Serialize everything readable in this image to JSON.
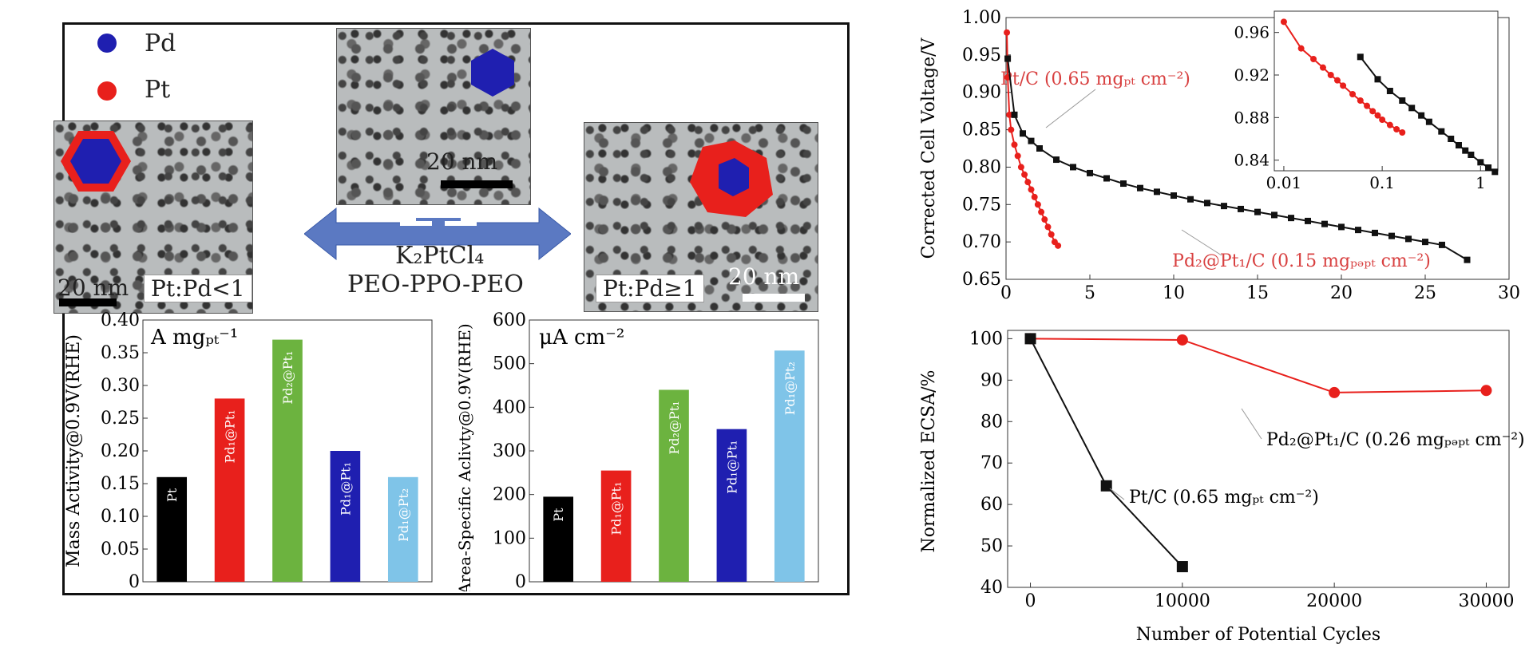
{
  "legend": {
    "pd_label": "Pd",
    "pt_label": "Pt",
    "pd_color": "#1f1fb0",
    "pt_color": "#e8201c"
  },
  "tem": {
    "scale": "20 nm",
    "ratio_low": "Pt:Pd<1",
    "ratio_high": "Pt:Pd≥1"
  },
  "synthesis": {
    "reagent": "K₂PtCl₄",
    "surfactant": "PEO-PPO-PEO"
  },
  "chart_data": [
    {
      "type": "bar",
      "unit_label": "A mgₚₜ⁻¹",
      "ylabel": "Mass Activity@0.9V(RHE)",
      "ylim": [
        0,
        0.4
      ],
      "yticks": [
        "0",
        "0.05",
        "0.10",
        "0.15",
        "0.20",
        "0.25",
        "0.30",
        "0.35",
        "0.40"
      ],
      "categories": [
        "Pt",
        "Pd₁@Pt₁",
        "Pd₂@Pt₁",
        "Pd₁@Pt₁",
        "Pd₁@Pt₂"
      ],
      "values": [
        0.16,
        0.28,
        0.37,
        0.2,
        0.16
      ],
      "colors": [
        "#000000",
        "#e8201c",
        "#6cb33f",
        "#1f1fb0",
        "#7fc4e8"
      ]
    },
    {
      "type": "bar",
      "unit_label": "μA cm⁻²",
      "ylabel": "Area-Specific Aclivty@0.9V(RHE)",
      "ylim": [
        0,
        600
      ],
      "yticks": [
        "0",
        "100",
        "200",
        "300",
        "400",
        "500",
        "600"
      ],
      "categories": [
        "Pt",
        "Pd₁@Pt₁",
        "Pd₂@Pt₁",
        "Pd₁@Pt₁",
        "Pd₁@Pt₂"
      ],
      "values": [
        195,
        255,
        440,
        350,
        530
      ],
      "colors": [
        "#000000",
        "#e8201c",
        "#6cb33f",
        "#1f1fb0",
        "#7fc4e8"
      ]
    },
    {
      "type": "line",
      "ylabel": "Corrected Cell Voltage/V",
      "xlim": [
        0,
        30
      ],
      "ylim": [
        0.65,
        1.0
      ],
      "xticks": [
        "0",
        "5",
        "10",
        "15",
        "20",
        "25",
        "30"
      ],
      "yticks": [
        "0.65",
        "0.70",
        "0.75",
        "0.80",
        "0.85",
        "0.90",
        "0.95",
        "1.00"
      ],
      "series": [
        {
          "name": "Pt/C (0.65 mgₚₜ cm⁻²)",
          "color": "#e8201c",
          "x": [
            0.05,
            0.1,
            0.2,
            0.3,
            0.5,
            0.7,
            0.9,
            1.1,
            1.3,
            1.5,
            1.7,
            1.9,
            2.1,
            2.3,
            2.5,
            2.7,
            2.9,
            3.1
          ],
          "y": [
            0.98,
            0.92,
            0.87,
            0.85,
            0.83,
            0.815,
            0.8,
            0.79,
            0.78,
            0.77,
            0.76,
            0.75,
            0.74,
            0.73,
            0.72,
            0.71,
            0.7,
            0.695
          ]
        },
        {
          "name": "Pd₂@Pt₁/C (0.15 mgₚₔₚₜ cm⁻²)",
          "color": "#111111",
          "x": [
            0.1,
            0.5,
            1.0,
            1.5,
            2.0,
            3.0,
            4.0,
            5.0,
            6.0,
            7.0,
            8.0,
            9.0,
            10.0,
            11.0,
            12.0,
            13.0,
            14.0,
            15.0,
            16.0,
            17.0,
            18.0,
            19.0,
            20.0,
            21.0,
            22.0,
            23.0,
            24.0,
            25.0,
            26.0,
            27.5
          ],
          "y": [
            0.945,
            0.87,
            0.845,
            0.835,
            0.825,
            0.81,
            0.8,
            0.792,
            0.785,
            0.778,
            0.772,
            0.767,
            0.762,
            0.757,
            0.752,
            0.748,
            0.744,
            0.74,
            0.736,
            0.732,
            0.728,
            0.724,
            0.72,
            0.716,
            0.712,
            0.708,
            0.704,
            0.7,
            0.696,
            0.676
          ]
        }
      ],
      "inset": {
        "xscale": "log",
        "xlim": [
          0.008,
          1.5
        ],
        "ylim": [
          0.83,
          0.98
        ],
        "xticks": [
          "0.01",
          "0.1",
          "1"
        ],
        "yticks": [
          "0.84",
          "0.88",
          "0.92",
          "0.96"
        ],
        "series": [
          {
            "color": "#e8201c",
            "x": [
              0.01,
              0.015,
              0.02,
              0.025,
              0.03,
              0.035,
              0.04,
              0.05,
              0.06,
              0.07,
              0.08,
              0.09,
              0.1,
              0.12,
              0.14,
              0.16
            ],
            "y": [
              0.97,
              0.945,
              0.935,
              0.927,
              0.92,
              0.915,
              0.91,
              0.902,
              0.896,
              0.891,
              0.886,
              0.882,
              0.878,
              0.873,
              0.869,
              0.866
            ]
          },
          {
            "color": "#111111",
            "x": [
              0.06,
              0.09,
              0.12,
              0.16,
              0.2,
              0.25,
              0.3,
              0.4,
              0.5,
              0.6,
              0.7,
              0.8,
              1.0,
              1.2,
              1.4
            ],
            "y": [
              0.937,
              0.916,
              0.905,
              0.896,
              0.889,
              0.882,
              0.876,
              0.867,
              0.86,
              0.854,
              0.849,
              0.845,
              0.838,
              0.833,
              0.829
            ]
          }
        ]
      }
    },
    {
      "type": "line",
      "xlabel": "Number of Potential Cycles",
      "ylabel": "Normalized ECSA/%",
      "xlim": [
        -1500,
        31500
      ],
      "ylim": [
        40,
        102
      ],
      "xticks": [
        "0",
        "10000",
        "20000",
        "30000"
      ],
      "yticks": [
        "40",
        "50",
        "60",
        "70",
        "80",
        "90",
        "100"
      ],
      "series": [
        {
          "name": "Pd₂@Pt₁/C (0.26 mgₚₔₚₜ cm⁻²)",
          "color": "#e8201c",
          "x": [
            0,
            10000,
            20000,
            30000
          ],
          "y": [
            100,
            99.7,
            87,
            87.5
          ]
        },
        {
          "name": "Pt/C (0.65 mgₚₜ cm⁻²)",
          "color": "#111111",
          "x": [
            0,
            5000,
            10000
          ],
          "y": [
            100,
            64.5,
            45
          ]
        }
      ]
    }
  ]
}
